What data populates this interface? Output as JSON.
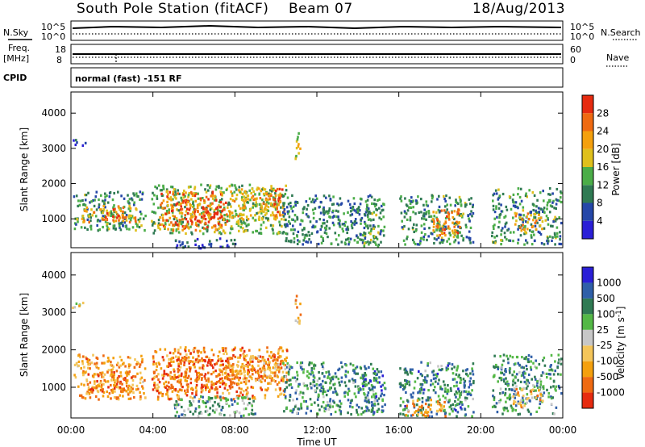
{
  "header": {
    "station": "South Pole Station (fitACF)",
    "beam": "Beam 07",
    "date": "18/Aug/2013"
  },
  "status_panels": {
    "nsky_label": "N.Sky",
    "nsearch_label": "N.Search",
    "noise_ticks_left": [
      "10^5",
      "10^0"
    ],
    "noise_ticks_right": [
      "10^5",
      "10^0"
    ],
    "freq_label_line1": "Freq.",
    "freq_label_line2": "[MHz]",
    "freq_ticks": [
      "18",
      "8"
    ],
    "nave_label": "Nave",
    "nave_ticks": [
      "60",
      "0"
    ],
    "cpid_label": "CPID",
    "cpid_text": "normal (fast) -151 RF"
  },
  "colors": {
    "power": [
      "#2a1fd6",
      "#2547a8",
      "#2f7a53",
      "#4bad48",
      "#dfc01d",
      "#f4a00e",
      "#ef6a12",
      "#e62b10"
    ],
    "velocity": [
      "#2a1fd6",
      "#2f5fa8",
      "#2f7a53",
      "#54b846",
      "#c7c7c7",
      "#f4c55a",
      "#f4a00e",
      "#ef6a12",
      "#e62b10"
    ]
  },
  "chart_data": [
    {
      "type": "heatmap",
      "name": "Power",
      "ylabel": "Slant Range [km]",
      "ylim": [
        180,
        4600
      ],
      "yticks": [
        "4000",
        "3000",
        "2000",
        "1000"
      ],
      "xlim": [
        0,
        24
      ],
      "colorbar_label": "Power [dB]",
      "colorbar_ticks": [
        "28",
        "24",
        "20",
        "16",
        "12",
        "8",
        "4"
      ],
      "colorbar_range": [
        0,
        30
      ],
      "regions": [
        {
          "x": [
            0.1,
            3.6
          ],
          "y": [
            700,
            1800
          ],
          "level": 0.35
        },
        {
          "x": [
            0.5,
            3.2
          ],
          "y": [
            900,
            1400
          ],
          "level": 0.7
        },
        {
          "x": [
            1.3,
            2.3
          ],
          "y": [
            1000,
            1300
          ],
          "level": 0.95
        },
        {
          "x": [
            3.9,
            10.5
          ],
          "y": [
            600,
            2000
          ],
          "level": 0.45
        },
        {
          "x": [
            4.3,
            7.6
          ],
          "y": [
            700,
            1800
          ],
          "level": 0.8
        },
        {
          "x": [
            6.0,
            7.4
          ],
          "y": [
            900,
            1400
          ],
          "level": 0.95
        },
        {
          "x": [
            7.7,
            10.3
          ],
          "y": [
            1000,
            1900
          ],
          "level": 0.65
        },
        {
          "x": [
            9.8,
            10.4
          ],
          "y": [
            1100,
            1900
          ],
          "level": 0.85
        },
        {
          "x": [
            10.3,
            14.8
          ],
          "y": [
            300,
            1700
          ],
          "level": 0.3
        },
        {
          "x": [
            14.2,
            15.3
          ],
          "y": [
            250,
            1600
          ],
          "level": 0.4
        },
        {
          "x": [
            16.0,
            19.6
          ],
          "y": [
            300,
            1700
          ],
          "level": 0.35
        },
        {
          "x": [
            17.6,
            19.0
          ],
          "y": [
            500,
            1300
          ],
          "level": 0.75
        },
        {
          "x": [
            20.5,
            23.9
          ],
          "y": [
            300,
            1900
          ],
          "level": 0.35
        },
        {
          "x": [
            21.6,
            23.0
          ],
          "y": [
            700,
            1200
          ],
          "level": 0.7
        },
        {
          "x": [
            0.0,
            0.8
          ],
          "y": [
            3100,
            3300
          ],
          "level": 0.1
        },
        {
          "x": [
            10.9,
            11.2
          ],
          "y": [
            2700,
            3500
          ],
          "level": 0.55
        },
        {
          "x": [
            5.0,
            8.0
          ],
          "y": [
            200,
            500
          ],
          "level": 0.2
        }
      ]
    },
    {
      "type": "heatmap",
      "name": "Velocity",
      "ylabel": "Slant Range [km]",
      "ylim": [
        180,
        4600
      ],
      "yticks": [
        "4000",
        "3000",
        "2000",
        "1000"
      ],
      "xlim": [
        0,
        24
      ],
      "xticks": [
        "00:00",
        "04:00",
        "08:00",
        "12:00",
        "16:00",
        "20:00",
        "00:00"
      ],
      "xlabel": "Time UT",
      "colorbar_label": "Velocity [m s-1]",
      "colorbar_ticks": [
        "1000",
        "500",
        "100",
        "25",
        "-25",
        "-100",
        "-500",
        "-1000"
      ],
      "colorbar_range": [
        -1200,
        1200
      ],
      "regions": [
        {
          "x": [
            0.1,
            3.6
          ],
          "y": [
            700,
            1900
          ],
          "level": 0.72
        },
        {
          "x": [
            0.5,
            3.0
          ],
          "y": [
            900,
            1500
          ],
          "level": 0.8
        },
        {
          "x": [
            3.9,
            10.5
          ],
          "y": [
            700,
            2100
          ],
          "level": 0.78
        },
        {
          "x": [
            4.5,
            8.0
          ],
          "y": [
            900,
            1800
          ],
          "level": 0.85
        },
        {
          "x": [
            7.5,
            10.5
          ],
          "y": [
            1100,
            1900
          ],
          "level": 0.7
        },
        {
          "x": [
            5.0,
            9.0
          ],
          "y": [
            250,
            800
          ],
          "level": 0.35
        },
        {
          "x": [
            10.3,
            14.8
          ],
          "y": [
            300,
            1700
          ],
          "level": 0.3
        },
        {
          "x": [
            14.2,
            15.3
          ],
          "y": [
            300,
            1600
          ],
          "level": 0.25
        },
        {
          "x": [
            16.0,
            19.6
          ],
          "y": [
            250,
            1700
          ],
          "level": 0.28
        },
        {
          "x": [
            16.3,
            18.3
          ],
          "y": [
            250,
            700
          ],
          "level": 0.7
        },
        {
          "x": [
            20.5,
            23.9
          ],
          "y": [
            300,
            1900
          ],
          "level": 0.3
        },
        {
          "x": [
            21.5,
            23.0
          ],
          "y": [
            500,
            1000
          ],
          "level": 0.65
        },
        {
          "x": [
            0.0,
            0.8
          ],
          "y": [
            3100,
            3300
          ],
          "level": 0.5
        },
        {
          "x": [
            10.9,
            11.2
          ],
          "y": [
            2700,
            3500
          ],
          "level": 0.7
        }
      ]
    }
  ]
}
